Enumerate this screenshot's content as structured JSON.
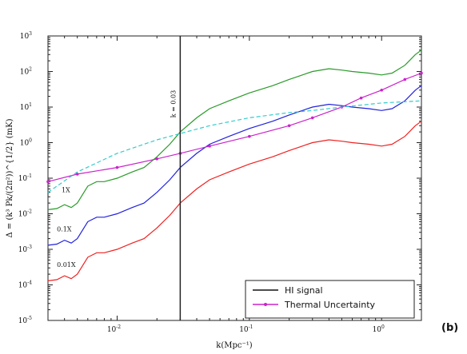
{
  "chart_data": {
    "type": "line",
    "xlabel": "k(Mpc⁻¹)",
    "ylabel": "Δ = (k³ Pk/(2π²))^{1/2} (mK)",
    "xscale": "log",
    "yscale": "log",
    "xlim": [
      0.003,
      2.0
    ],
    "ylim": [
      1e-05,
      1000
    ],
    "x_ticks": [
      {
        "value": 0.01,
        "base": "10",
        "exp": "-2"
      },
      {
        "value": 0.1,
        "base": "10",
        "exp": "-1"
      },
      {
        "value": 1.0,
        "base": "10",
        "exp": "0"
      }
    ],
    "y_ticks": [
      {
        "value": 1e-05,
        "base": "10",
        "exp": "-5"
      },
      {
        "value": 0.0001,
        "base": "10",
        "exp": "-4"
      },
      {
        "value": 0.001,
        "base": "10",
        "exp": "-3"
      },
      {
        "value": 0.01,
        "base": "10",
        "exp": "-2"
      },
      {
        "value": 0.1,
        "base": "10",
        "exp": "-1"
      },
      {
        "value": 1,
        "base": "10",
        "exp": "0"
      },
      {
        "value": 10,
        "base": "10",
        "exp": "1"
      },
      {
        "value": 100,
        "base": "10",
        "exp": "2"
      },
      {
        "value": 1000,
        "base": "10",
        "exp": "3"
      }
    ],
    "series": [
      {
        "label": "1X",
        "color": "#2a9a2a",
        "points": [
          [
            0.003,
            0.013
          ],
          [
            0.0035,
            0.014
          ],
          [
            0.004,
            0.018
          ],
          [
            0.0045,
            0.015
          ],
          [
            0.005,
            0.02
          ],
          [
            0.006,
            0.06
          ],
          [
            0.007,
            0.08
          ],
          [
            0.008,
            0.08
          ],
          [
            0.01,
            0.1
          ],
          [
            0.013,
            0.15
          ],
          [
            0.016,
            0.2
          ],
          [
            0.02,
            0.4
          ],
          [
            0.025,
            0.9
          ],
          [
            0.03,
            2
          ],
          [
            0.04,
            5
          ],
          [
            0.05,
            9
          ],
          [
            0.07,
            15
          ],
          [
            0.1,
            25
          ],
          [
            0.15,
            40
          ],
          [
            0.2,
            60
          ],
          [
            0.3,
            100
          ],
          [
            0.4,
            120
          ],
          [
            0.5,
            110
          ],
          [
            0.6,
            100
          ],
          [
            0.8,
            90
          ],
          [
            1.0,
            80
          ],
          [
            1.2,
            90
          ],
          [
            1.5,
            150
          ],
          [
            1.8,
            300
          ],
          [
            2.0,
            400
          ]
        ]
      },
      {
        "label": "0.1X",
        "color": "#2222dd",
        "points": [
          [
            0.003,
            0.0013
          ],
          [
            0.0035,
            0.0014
          ],
          [
            0.004,
            0.0018
          ],
          [
            0.0045,
            0.0015
          ],
          [
            0.005,
            0.002
          ],
          [
            0.006,
            0.006
          ],
          [
            0.007,
            0.008
          ],
          [
            0.008,
            0.008
          ],
          [
            0.01,
            0.01
          ],
          [
            0.013,
            0.015
          ],
          [
            0.016,
            0.02
          ],
          [
            0.02,
            0.04
          ],
          [
            0.025,
            0.09
          ],
          [
            0.03,
            0.2
          ],
          [
            0.04,
            0.5
          ],
          [
            0.05,
            0.9
          ],
          [
            0.07,
            1.5
          ],
          [
            0.1,
            2.5
          ],
          [
            0.15,
            4
          ],
          [
            0.2,
            6
          ],
          [
            0.3,
            10
          ],
          [
            0.4,
            12
          ],
          [
            0.5,
            11
          ],
          [
            0.6,
            10
          ],
          [
            0.8,
            9
          ],
          [
            1.0,
            8
          ],
          [
            1.2,
            9
          ],
          [
            1.5,
            15
          ],
          [
            1.8,
            30
          ],
          [
            2.0,
            40
          ]
        ]
      },
      {
        "label": "0.01X",
        "color": "#ee2222",
        "points": [
          [
            0.003,
            0.00013
          ],
          [
            0.0035,
            0.00014
          ],
          [
            0.004,
            0.00018
          ],
          [
            0.0045,
            0.00015
          ],
          [
            0.005,
            0.0002
          ],
          [
            0.006,
            0.0006
          ],
          [
            0.007,
            0.0008
          ],
          [
            0.008,
            0.0008
          ],
          [
            0.01,
            0.001
          ],
          [
            0.013,
            0.0015
          ],
          [
            0.016,
            0.002
          ],
          [
            0.02,
            0.004
          ],
          [
            0.025,
            0.009
          ],
          [
            0.03,
            0.02
          ],
          [
            0.04,
            0.05
          ],
          [
            0.05,
            0.09
          ],
          [
            0.07,
            0.15
          ],
          [
            0.1,
            0.25
          ],
          [
            0.15,
            0.4
          ],
          [
            0.2,
            0.6
          ],
          [
            0.3,
            1.0
          ],
          [
            0.4,
            1.2
          ],
          [
            0.5,
            1.1
          ],
          [
            0.6,
            1.0
          ],
          [
            0.8,
            0.9
          ],
          [
            1.0,
            0.8
          ],
          [
            1.2,
            0.9
          ],
          [
            1.5,
            1.5
          ],
          [
            1.8,
            3.0
          ],
          [
            2.0,
            4.0
          ]
        ]
      },
      {
        "label": "Thermal Uncertainty",
        "color": "#cc22cc",
        "markers": true,
        "points": [
          [
            0.003,
            0.08
          ],
          [
            0.005,
            0.13
          ],
          [
            0.01,
            0.2
          ],
          [
            0.02,
            0.35
          ],
          [
            0.03,
            0.5
          ],
          [
            0.05,
            0.8
          ],
          [
            0.1,
            1.5
          ],
          [
            0.2,
            3
          ],
          [
            0.3,
            5
          ],
          [
            0.5,
            10
          ],
          [
            0.7,
            18
          ],
          [
            1.0,
            30
          ],
          [
            1.5,
            60
          ],
          [
            2.0,
            90
          ]
        ]
      },
      {
        "label": "",
        "color": "#33cccc",
        "dashed": true,
        "points": [
          [
            0.003,
            0.04
          ],
          [
            0.005,
            0.15
          ],
          [
            0.01,
            0.5
          ],
          [
            0.02,
            1.2
          ],
          [
            0.03,
            1.8
          ],
          [
            0.05,
            3
          ],
          [
            0.1,
            5
          ],
          [
            0.2,
            7
          ],
          [
            0.3,
            8
          ],
          [
            0.5,
            10
          ],
          [
            1.0,
            13
          ],
          [
            2.0,
            15
          ]
        ]
      }
    ],
    "vertical_line": {
      "x": 0.03,
      "label": "k = 0.03"
    },
    "legend": {
      "placement": "bottom-right",
      "entries": [
        {
          "label": "HI signal",
          "color": "#111111"
        },
        {
          "label": "Thermal Uncertainty",
          "color": "#cc22cc"
        }
      ]
    },
    "panel_label": "(b)"
  }
}
